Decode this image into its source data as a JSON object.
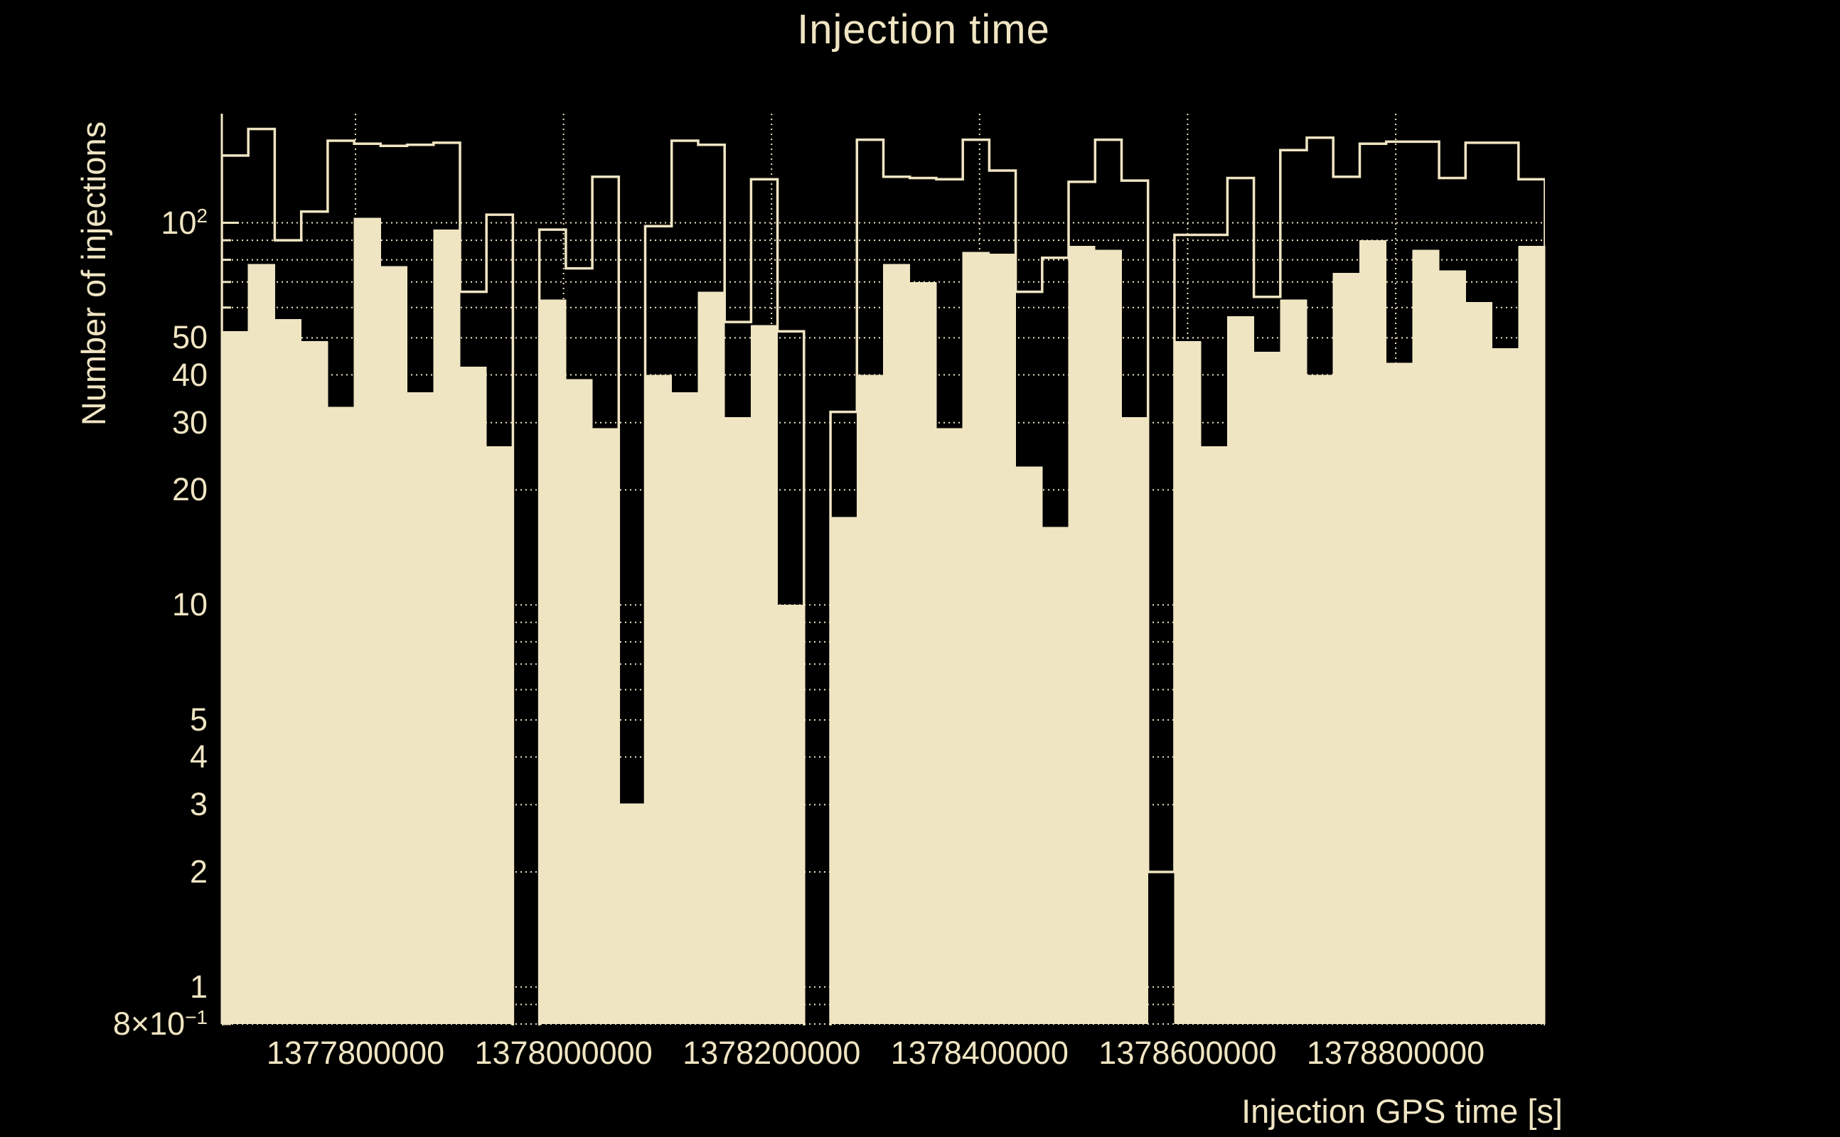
{
  "title": "Injection time",
  "colors": {
    "background": "#000000",
    "foreground": "#f0e5c3"
  },
  "axes": {
    "x_title": "Injection GPS time [s]",
    "y_title": "Number of injections",
    "x_ticks": [
      {
        "value": 1377800000,
        "label": "1377800000"
      },
      {
        "value": 1378000000,
        "label": "1378000000"
      },
      {
        "value": 1378200000,
        "label": "1378200000"
      },
      {
        "value": 1378400000,
        "label": "1378400000"
      },
      {
        "value": 1378600000,
        "label": "1378600000"
      },
      {
        "value": 1378800000,
        "label": "1378800000"
      }
    ],
    "y_ticks": [
      {
        "value": 100,
        "main": "10",
        "sup": "2"
      },
      {
        "value": 50,
        "main": "50",
        "sup": ""
      },
      {
        "value": 40,
        "main": "40",
        "sup": ""
      },
      {
        "value": 30,
        "main": "30",
        "sup": ""
      },
      {
        "value": 20,
        "main": "20",
        "sup": ""
      },
      {
        "value": 10,
        "main": "10",
        "sup": ""
      },
      {
        "value": 5,
        "main": "5",
        "sup": ""
      },
      {
        "value": 4,
        "main": "4",
        "sup": ""
      },
      {
        "value": 3,
        "main": "3",
        "sup": ""
      },
      {
        "value": 2,
        "main": "2",
        "sup": ""
      },
      {
        "value": 1,
        "main": "1",
        "sup": ""
      },
      {
        "value": 0.8,
        "main": "8×10",
        "sup": "−1"
      }
    ],
    "y_gridlines": [
      0.8,
      0.9,
      1,
      2,
      3,
      4,
      5,
      6,
      7,
      8,
      9,
      10,
      20,
      30,
      40,
      50,
      60,
      70,
      80,
      90,
      100
    ],
    "y_major": [
      1,
      10,
      100
    ],
    "grid": "dotted",
    "y_scale": "log"
  },
  "chart_data": {
    "type": "bar",
    "subtype": "histogram-log-y",
    "title": "Injection time",
    "xlabel": "Injection GPS time [s]",
    "ylabel": "Number of injections",
    "x_min": 1377671500,
    "x_max": 1378943500,
    "n_bins": 50,
    "y_min": 0.8,
    "y_max": 193,
    "series": [
      {
        "name": "all-injections-outline",
        "style": "step-outline",
        "values": [
          150,
          176,
          90,
          107,
          164,
          161,
          159,
          160,
          162,
          66,
          105,
          0,
          96,
          76,
          132,
          3,
          98,
          164,
          160,
          55,
          130,
          52,
          0,
          32,
          165,
          132,
          131,
          130,
          165,
          137,
          66,
          81,
          128,
          165,
          129,
          2,
          93,
          93,
          131,
          64,
          155,
          167,
          132,
          161,
          163,
          163,
          131,
          162,
          162,
          130
        ]
      },
      {
        "name": "recovered-injections-filled",
        "style": "filled",
        "values": [
          52,
          78,
          56,
          49,
          33,
          103,
          77,
          36,
          96,
          42,
          26,
          0,
          63,
          39,
          29,
          3,
          40,
          36,
          66,
          31,
          54,
          10,
          0,
          17,
          40,
          78,
          70,
          29,
          84,
          83,
          23,
          16,
          87,
          85,
          31,
          0,
          49,
          26,
          57,
          46,
          63,
          40,
          74,
          90,
          43,
          85,
          75,
          62,
          47,
          87
        ]
      }
    ]
  }
}
